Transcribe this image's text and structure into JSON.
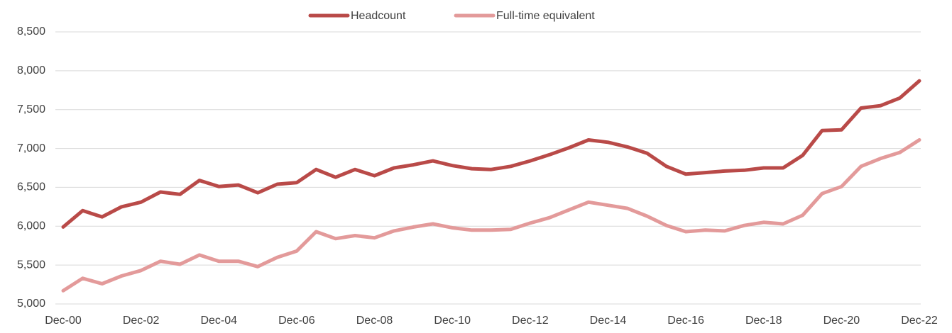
{
  "chart_data": {
    "type": "line",
    "categories": [
      "Dec-00",
      null,
      null,
      null,
      "Dec-02",
      null,
      null,
      null,
      "Dec-04",
      null,
      null,
      null,
      "Dec-06",
      null,
      null,
      null,
      "Dec-08",
      null,
      null,
      null,
      "Dec-10",
      null,
      null,
      null,
      "Dec-12",
      null,
      null,
      null,
      "Dec-14",
      null,
      null,
      null,
      "Dec-16",
      null,
      null,
      null,
      "Dec-18",
      null,
      null,
      null,
      "Dec-20",
      null,
      null,
      null,
      "Dec-22"
    ],
    "series": [
      {
        "name": "Headcount",
        "color": "#b94a48",
        "values": [
          5990,
          6200,
          6120,
          6250,
          6310,
          6440,
          6410,
          6590,
          6510,
          6530,
          6430,
          6540,
          6560,
          6730,
          6630,
          6730,
          6650,
          6750,
          6790,
          6840,
          6780,
          6740,
          6730,
          6770,
          6840,
          6920,
          7010,
          7110,
          7080,
          7020,
          6940,
          6770,
          6670,
          6690,
          6710,
          6720,
          6750,
          6750,
          6910,
          7230,
          7240,
          7520,
          7550,
          7650,
          7870
        ]
      },
      {
        "name": "Full-time equivalent",
        "color": "#e39a9a",
        "values": [
          5170,
          5330,
          5260,
          5360,
          5430,
          5550,
          5510,
          5630,
          5550,
          5550,
          5480,
          5600,
          5680,
          5930,
          5840,
          5880,
          5850,
          5940,
          5990,
          6030,
          5980,
          5950,
          5950,
          5960,
          6040,
          6110,
          6210,
          6310,
          6270,
          6230,
          6130,
          6010,
          5930,
          5950,
          5940,
          6010,
          6050,
          6030,
          6140,
          6420,
          6510,
          6770,
          6870,
          6950,
          7110
        ]
      }
    ],
    "ylim": [
      5000,
      8500
    ],
    "yticks": [
      {
        "value": 5000,
        "label": "5,000"
      },
      {
        "value": 5500,
        "label": "5,500"
      },
      {
        "value": 6000,
        "label": "6,000"
      },
      {
        "value": 6500,
        "label": "6,500"
      },
      {
        "value": 7000,
        "label": "7,000"
      },
      {
        "value": 7500,
        "label": "7,500"
      },
      {
        "value": 8000,
        "label": "8,000"
      },
      {
        "value": 8500,
        "label": "8,500"
      }
    ],
    "grid": true,
    "legend": "top"
  }
}
